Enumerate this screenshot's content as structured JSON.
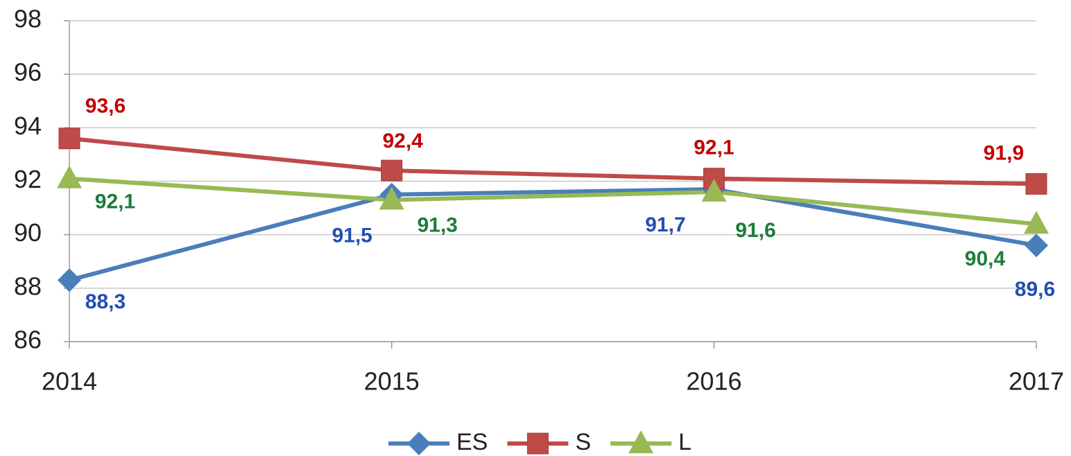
{
  "chart_data": {
    "type": "line",
    "categories": [
      "2014",
      "2015",
      "2016",
      "2017"
    ],
    "series": [
      {
        "name": "ES",
        "color": "#4a7ebb",
        "label_color": "#1f4fb4",
        "marker": "diamond",
        "values": [
          88.3,
          91.5,
          91.7,
          89.6
        ],
        "value_labels": [
          "88,3",
          "91,5",
          "91,7",
          "89,6"
        ]
      },
      {
        "name": "S",
        "color": "#be4b48",
        "label_color": "#c00000",
        "marker": "square",
        "values": [
          93.6,
          92.4,
          92.1,
          91.9
        ],
        "value_labels": [
          "93,6",
          "92,4",
          "92,1",
          "91,9"
        ]
      },
      {
        "name": "L",
        "color": "#98b954",
        "label_color": "#1e7b3b",
        "marker": "triangle",
        "values": [
          92.1,
          91.3,
          91.6,
          90.4
        ],
        "value_labels": [
          "92,1",
          "91,3",
          "91,6",
          "90,4"
        ]
      }
    ],
    "ylim": [
      86,
      98
    ],
    "yticks": [
      86,
      88,
      90,
      92,
      94,
      96,
      98
    ],
    "grid": true,
    "legend": "bottom"
  }
}
